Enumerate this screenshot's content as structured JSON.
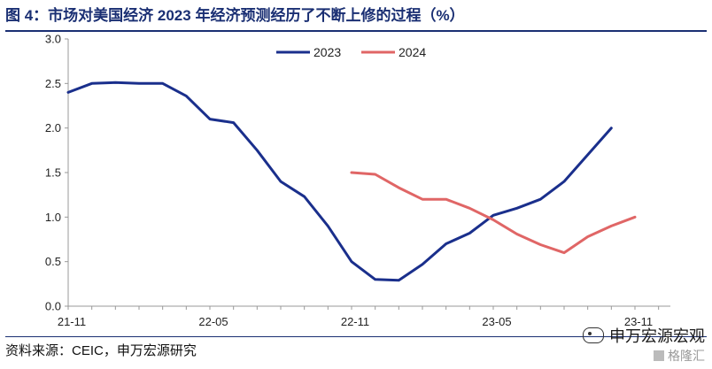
{
  "title": "图 4：市场对美国经济 2023 年经济预测经历了不断上修的过程（%）",
  "source": "资料来源：CEIC，申万宏源研究",
  "watermark": {
    "line1": "申万宏源宏观",
    "line2": "格隆汇"
  },
  "colors": {
    "series_2023": "#1a2f8c",
    "series_2024": "#e06666",
    "title": "#1a2f73",
    "axis": "#999999"
  },
  "chart_data": {
    "type": "line",
    "ylim": [
      0.0,
      3.0
    ],
    "yticks": [
      "0.0",
      "0.5",
      "1.0",
      "1.5",
      "2.0",
      "2.5",
      "3.0"
    ],
    "xlim": [
      0,
      25.5
    ],
    "xticks": [
      {
        "label": "21-11",
        "index": 0
      },
      {
        "label": "22-05",
        "index": 6
      },
      {
        "label": "22-11",
        "index": 12
      },
      {
        "label": "23-05",
        "index": 18
      },
      {
        "label": "23-11",
        "index": 24
      }
    ],
    "legend_position": "top-center",
    "grid": false,
    "series": [
      {
        "name": "2023",
        "color": "#1a2f8c",
        "x": [
          0,
          1,
          2,
          3,
          4,
          5,
          6,
          7,
          8,
          9,
          10,
          11,
          12,
          13,
          14,
          15,
          16,
          17,
          18,
          19,
          20,
          21,
          22,
          23
        ],
        "values": [
          2.4,
          2.5,
          2.51,
          2.5,
          2.5,
          2.36,
          2.1,
          2.06,
          1.75,
          1.4,
          1.23,
          0.9,
          0.5,
          0.3,
          0.29,
          0.47,
          0.7,
          0.82,
          1.02,
          1.1,
          1.2,
          1.4,
          1.7,
          2.0
        ]
      },
      {
        "name": "2024",
        "color": "#e06666",
        "x": [
          12,
          13,
          14,
          15,
          16,
          17,
          18,
          19,
          20,
          21,
          22,
          23,
          24
        ],
        "values": [
          1.5,
          1.48,
          1.33,
          1.2,
          1.2,
          1.1,
          0.97,
          0.81,
          0.69,
          0.6,
          0.78,
          0.9,
          1.0
        ]
      }
    ]
  }
}
